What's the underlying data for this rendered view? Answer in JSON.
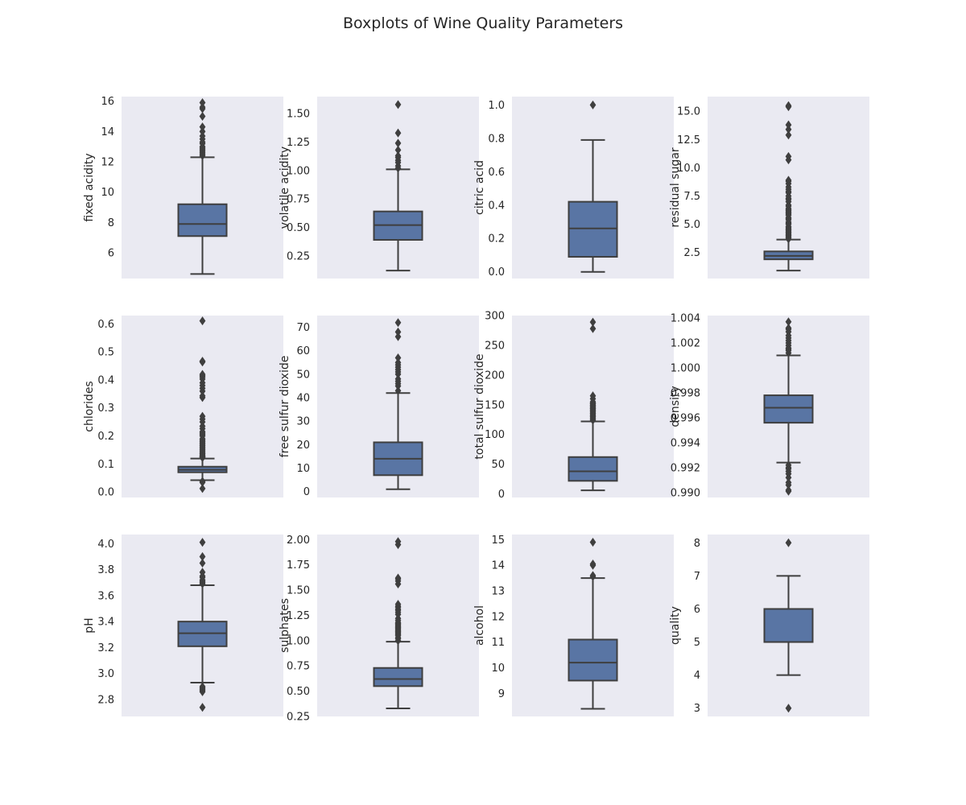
{
  "chart_data": {
    "type": "boxplot",
    "title": "Boxplots of Wine Quality Parameters",
    "grid": false,
    "layout": "3x4",
    "colors": {
      "box": "#5975a4",
      "line": "#3f3f3f",
      "axes_bg": "#eaeaf2"
    },
    "panels": [
      {
        "ylabel": "fixed acidity",
        "ylim": [
          4.3,
          16.3
        ],
        "ticks": [
          6,
          8,
          10,
          12,
          14,
          16
        ],
        "tick_labels": [
          "6",
          "8",
          "10",
          "12",
          "14",
          "16"
        ],
        "whisker_low": 4.6,
        "q1": 7.1,
        "median": 7.9,
        "q3": 9.2,
        "whisker_high": 12.3,
        "outliers": [
          12.4,
          12.5,
          12.6,
          12.7,
          12.8,
          12.9,
          13.0,
          13.2,
          13.3,
          13.5,
          13.7,
          14.0,
          14.3,
          15.0,
          15.5,
          15.6,
          15.9
        ]
      },
      {
        "ylabel": "volatile acidity",
        "ylim": [
          0.05,
          1.65
        ],
        "ticks": [
          0.25,
          0.5,
          0.75,
          1.0,
          1.25,
          1.5
        ],
        "tick_labels": [
          "0.25",
          "0.50",
          "0.75",
          "1.00",
          "1.25",
          "1.50"
        ],
        "whisker_low": 0.12,
        "q1": 0.39,
        "median": 0.52,
        "q3": 0.64,
        "whisker_high": 1.01,
        "outliers": [
          1.02,
          1.04,
          1.07,
          1.09,
          1.115,
          1.13,
          1.18,
          1.24,
          1.33,
          1.58
        ]
      },
      {
        "ylabel": "citric acid",
        "ylim": [
          -0.04,
          1.05
        ],
        "ticks": [
          0.0,
          0.2,
          0.4,
          0.6,
          0.8,
          1.0
        ],
        "tick_labels": [
          "0.0",
          "0.2",
          "0.4",
          "0.6",
          "0.8",
          "1.0"
        ],
        "whisker_low": 0.0,
        "q1": 0.09,
        "median": 0.26,
        "q3": 0.42,
        "whisker_high": 0.79,
        "outliers": [
          1.0
        ]
      },
      {
        "ylabel": "residual sugar",
        "ylim": [
          0.2,
          16.3
        ],
        "ticks": [
          2.5,
          5.0,
          7.5,
          10.0,
          12.5,
          15.0
        ],
        "tick_labels": [
          "2.5",
          "5.0",
          "7.5",
          "10.0",
          "12.5",
          "15.0"
        ],
        "whisker_low": 0.9,
        "q1": 1.9,
        "median": 2.2,
        "q3": 2.6,
        "whisker_high": 3.65,
        "outliers": [
          3.7,
          3.8,
          3.9,
          4.0,
          4.1,
          4.2,
          4.3,
          4.4,
          4.5,
          4.6,
          4.7,
          4.8,
          5.0,
          5.1,
          5.2,
          5.4,
          5.5,
          5.6,
          5.8,
          5.9,
          6.0,
          6.1,
          6.2,
          6.3,
          6.4,
          6.6,
          6.7,
          7.0,
          7.2,
          7.3,
          7.5,
          7.8,
          7.9,
          8.1,
          8.3,
          8.6,
          8.8,
          8.9,
          10.7,
          11.0,
          12.9,
          13.4,
          13.8,
          15.4,
          15.5
        ]
      },
      {
        "ylabel": "chlorides",
        "ylim": [
          -0.02,
          0.63
        ],
        "ticks": [
          0.0,
          0.1,
          0.2,
          0.3,
          0.4,
          0.5,
          0.6
        ],
        "tick_labels": [
          "0.0",
          "0.1",
          "0.2",
          "0.3",
          "0.4",
          "0.5",
          "0.6"
        ],
        "whisker_low": 0.042,
        "q1": 0.07,
        "median": 0.079,
        "q3": 0.09,
        "whisker_high": 0.119,
        "outliers": [
          0.012,
          0.034,
          0.038,
          0.122,
          0.124,
          0.126,
          0.128,
          0.132,
          0.136,
          0.14,
          0.145,
          0.15,
          0.155,
          0.16,
          0.165,
          0.17,
          0.175,
          0.18,
          0.185,
          0.19,
          0.2,
          0.205,
          0.21,
          0.215,
          0.226,
          0.235,
          0.25,
          0.26,
          0.27,
          0.337,
          0.343,
          0.36,
          0.37,
          0.38,
          0.39,
          0.403,
          0.41,
          0.415,
          0.42,
          0.464,
          0.467,
          0.611
        ]
      },
      {
        "ylabel": "free sulfur dioxide",
        "ylim": [
          -2.5,
          75
        ],
        "ticks": [
          0,
          10,
          20,
          30,
          40,
          50,
          60,
          70
        ],
        "tick_labels": [
          "0",
          "10",
          "20",
          "30",
          "40",
          "50",
          "60",
          "70"
        ],
        "whisker_low": 1,
        "q1": 7,
        "median": 14,
        "q3": 21,
        "whisker_high": 42,
        "outliers": [
          43,
          45,
          46,
          47,
          48,
          50,
          51,
          52,
          53,
          54,
          55,
          57,
          66,
          68,
          72
        ]
      },
      {
        "ylabel": "total sulfur dioxide",
        "ylim": [
          -6,
          300
        ],
        "ticks": [
          0,
          50,
          100,
          150,
          200,
          250,
          300
        ],
        "tick_labels": [
          "0",
          "50",
          "100",
          "150",
          "200",
          "250",
          "300"
        ],
        "whisker_low": 6,
        "q1": 22,
        "median": 38,
        "q3": 62,
        "whisker_high": 122,
        "outliers": [
          124,
          126,
          128,
          130,
          131,
          133,
          135,
          136,
          138,
          140,
          141,
          143,
          144,
          145,
          147,
          148,
          149,
          151,
          152,
          153,
          155,
          160,
          165,
          278,
          289
        ]
      },
      {
        "ylabel": "density",
        "ylim": [
          0.9896,
          1.0042
        ],
        "ticks": [
          0.99,
          0.992,
          0.994,
          0.996,
          0.998,
          1.0,
          1.002,
          1.004
        ],
        "tick_labels": [
          "0.990",
          "0.992",
          "0.994",
          "0.996",
          "0.998",
          "1.000",
          "1.002",
          "1.004"
        ],
        "whisker_low": 0.9924,
        "q1": 0.9956,
        "median": 0.9968,
        "q3": 0.9978,
        "whisker_high": 1.001,
        "outliers": [
          0.9901,
          0.9902,
          0.9906,
          0.9908,
          0.9912,
          0.9915,
          0.9917,
          0.9919,
          0.992,
          0.9922,
          1.0012,
          1.0014,
          1.0015,
          1.0016,
          1.0018,
          1.002,
          1.0022,
          1.0024,
          1.0026,
          1.0029,
          1.0031,
          1.0032,
          1.0037
        ]
      },
      {
        "ylabel": "pH",
        "ylim": [
          2.67,
          4.07
        ],
        "ticks": [
          2.8,
          3.0,
          3.2,
          3.4,
          3.6,
          3.8,
          4.0
        ],
        "tick_labels": [
          "2.8",
          "3.0",
          "3.2",
          "3.4",
          "3.6",
          "3.8",
          "4.0"
        ],
        "whisker_low": 2.93,
        "q1": 3.21,
        "median": 3.31,
        "q3": 3.4,
        "whisker_high": 3.68,
        "outliers": [
          2.74,
          2.86,
          2.87,
          2.88,
          2.89,
          2.9,
          3.69,
          3.7,
          3.71,
          3.72,
          3.74,
          3.75,
          3.78,
          3.85,
          3.9,
          4.01
        ]
      },
      {
        "ylabel": "sulphates",
        "ylim": [
          0.25,
          2.05
        ],
        "ticks": [
          0.25,
          0.5,
          0.75,
          1.0,
          1.25,
          1.5,
          1.75,
          2.0
        ],
        "tick_labels": [
          "0.25",
          "0.50",
          "0.75",
          "1.00",
          "1.25",
          "1.50",
          "1.75",
          "2.00"
        ],
        "whisker_low": 0.33,
        "q1": 0.55,
        "median": 0.62,
        "q3": 0.73,
        "whisker_high": 0.99,
        "outliers": [
          1.0,
          1.02,
          1.03,
          1.05,
          1.06,
          1.07,
          1.08,
          1.09,
          1.1,
          1.11,
          1.12,
          1.13,
          1.14,
          1.15,
          1.16,
          1.17,
          1.18,
          1.2,
          1.22,
          1.26,
          1.28,
          1.3,
          1.31,
          1.33,
          1.34,
          1.36,
          1.56,
          1.59,
          1.61,
          1.62,
          1.95,
          1.98
        ]
      },
      {
        "ylabel": "alcohol",
        "ylim": [
          8.1,
          15.2
        ],
        "ticks": [
          9,
          10,
          11,
          12,
          13,
          14,
          15
        ],
        "tick_labels": [
          "9",
          "10",
          "11",
          "12",
          "13",
          "14",
          "15"
        ],
        "whisker_low": 8.4,
        "q1": 9.5,
        "median": 10.2,
        "q3": 11.1,
        "whisker_high": 13.5,
        "outliers": [
          13.56,
          13.6,
          14.0,
          14.05,
          14.9
        ]
      },
      {
        "ylabel": "quality",
        "ylim": [
          2.75,
          8.25
        ],
        "ticks": [
          3,
          4,
          5,
          6,
          7,
          8
        ],
        "tick_labels": [
          "3",
          "4",
          "5",
          "6",
          "7",
          "8"
        ],
        "whisker_low": 4,
        "q1": 5,
        "median": 5,
        "q3": 6,
        "whisker_high": 7,
        "outliers": [
          3,
          8
        ]
      }
    ]
  }
}
